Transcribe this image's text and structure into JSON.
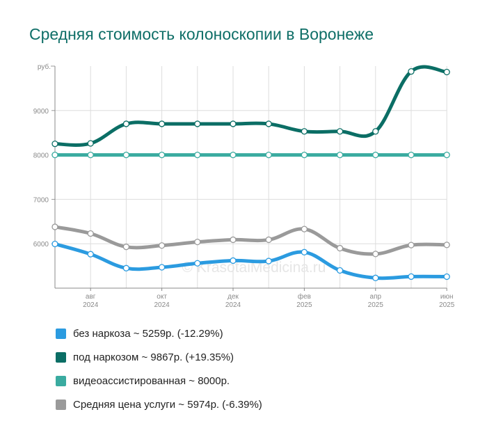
{
  "title": "Средняя стоимость колоноскопии в Воронеже",
  "watermark": "© KrasotaiMedicina.ru",
  "chart_data": {
    "type": "line",
    "unit_label": "руб.",
    "y_ticks": [
      6000,
      7000,
      8000,
      9000
    ],
    "ylim": [
      5000,
      10000
    ],
    "x_count": 12,
    "x_labels": [
      {
        "i": 1,
        "month": "авг",
        "year": "2024"
      },
      {
        "i": 3,
        "month": "окт",
        "year": "2024"
      },
      {
        "i": 5,
        "month": "дек",
        "year": "2024"
      },
      {
        "i": 7,
        "month": "фев",
        "year": "2025"
      },
      {
        "i": 9,
        "month": "апр",
        "year": "2025"
      },
      {
        "i": 11,
        "month": "июн",
        "year": "2025"
      }
    ],
    "grid": true,
    "series": [
      {
        "key": "no_anesthesia",
        "color": "#2b9be0",
        "values": [
          5995,
          5765,
          5450,
          5470,
          5560,
          5620,
          5610,
          5810,
          5400,
          5230,
          5260,
          5259
        ]
      },
      {
        "key": "anesthesia",
        "color": "#0b6e65",
        "values": [
          8250,
          8260,
          8700,
          8700,
          8700,
          8700,
          8700,
          8530,
          8530,
          8530,
          9880,
          9867
        ]
      },
      {
        "key": "video",
        "color": "#3aaba0",
        "values": [
          8000,
          8000,
          8000,
          8000,
          8000,
          8000,
          8000,
          8000,
          8000,
          8000,
          8000,
          8000
        ]
      },
      {
        "key": "average",
        "color": "#9a9a9a",
        "values": [
          6380,
          6230,
          5930,
          5960,
          6040,
          6090,
          6090,
          6330,
          5900,
          5770,
          5970,
          5974
        ]
      }
    ]
  },
  "legend": [
    {
      "text": "без наркоза ~ 5259р. (-12.29%)",
      "color": "#2b9be0"
    },
    {
      "text": "под наркозом ~ 9867р. (+19.35%)",
      "color": "#0b6e65"
    },
    {
      "text": "видеоассистированная ~ 8000р.",
      "color": "#3aaba0"
    },
    {
      "text": "Средняя цена услуги ~ 5974р. (-6.39%)",
      "color": "#9a9a9a"
    }
  ]
}
